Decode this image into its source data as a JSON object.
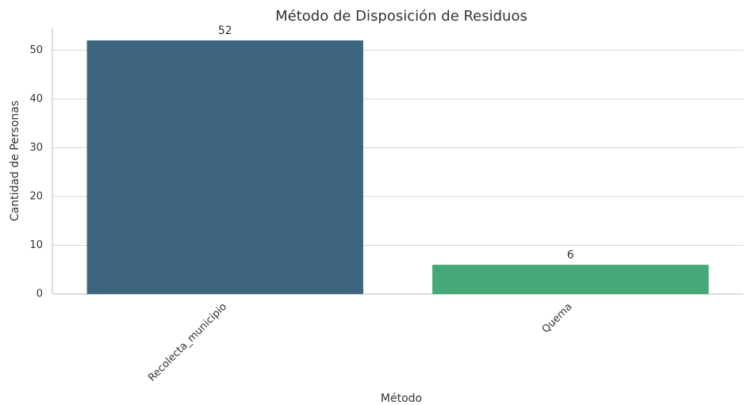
{
  "chart_data": {
    "type": "bar",
    "title": "Método de Disposición de Residuos",
    "x_label": "Método",
    "y_label": "Cantidad de Personas",
    "categories": [
      "Recolecta_municipio",
      "Quema"
    ],
    "values": [
      52,
      6
    ],
    "colors": [
      "#3e6681",
      "#45a876"
    ],
    "ylim": [
      0,
      54.6
    ],
    "yticks": [
      0,
      10,
      20,
      30,
      40,
      50
    ],
    "grid": true
  }
}
